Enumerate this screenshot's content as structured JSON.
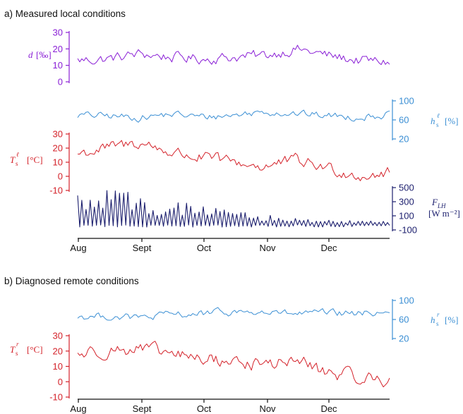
{
  "panels": {
    "a_title": "a) Measured local conditions",
    "b_title": "b) Diagnosed remote conditions"
  },
  "months": [
    "Aug",
    "Sept",
    "Oct",
    "Nov",
    "Dec"
  ],
  "colors": {
    "d": "#8a1fd6",
    "hs": "#3b8fd4",
    "Ts": "#d4222a",
    "FLH": "#1c1f6e",
    "axis": "#111111"
  },
  "chart_data": [
    {
      "type": "line",
      "panel": "a",
      "series_id": "d_local",
      "ylabel": "d [‰]",
      "ylim": [
        0,
        30
      ],
      "yticks": [
        "30",
        "20",
        "10",
        "0"
      ],
      "y_tick_values": [
        30,
        20,
        10,
        0
      ],
      "x": [
        "Aug 1",
        "Aug 15",
        "Sep 1",
        "Sep 15",
        "Oct 1",
        "Oct 15",
        "Nov 1",
        "Nov 15",
        "Dec 1",
        "Dec 15",
        "Dec 31"
      ],
      "values": [
        13,
        14,
        17,
        15,
        14,
        15,
        16,
        20,
        16,
        13,
        12
      ]
    },
    {
      "type": "line",
      "panel": "a",
      "series_id": "hs_local",
      "ylabel": "hₛˡ [%]",
      "ylim": [
        10,
        100
      ],
      "yticks": [
        "100",
        "60",
        "20"
      ],
      "y_tick_values": [
        100,
        60,
        20
      ],
      "x": [
        "Aug 1",
        "Aug 15",
        "Sep 1",
        "Sep 15",
        "Oct 1",
        "Oct 15",
        "Nov 1",
        "Nov 15",
        "Dec 1",
        "Dec 15",
        "Dec 31"
      ],
      "values": [
        70,
        68,
        65,
        72,
        66,
        70,
        78,
        73,
        69,
        66,
        72
      ]
    },
    {
      "type": "line",
      "panel": "a",
      "series_id": "Ts_local",
      "ylabel": "Tₛˡ [°C]",
      "ylim": [
        -10,
        30
      ],
      "yticks": [
        "30",
        "20",
        "10",
        "0",
        "-10"
      ],
      "y_tick_values": [
        30,
        20,
        10,
        0,
        -10
      ],
      "x": [
        "Aug 1",
        "Aug 15",
        "Sep 1",
        "Sep 15",
        "Oct 1",
        "Oct 15",
        "Nov 1",
        "Nov 15",
        "Dec 1",
        "Dec 15",
        "Dec 31"
      ],
      "values": [
        16,
        20,
        24,
        17,
        13,
        10,
        7,
        11,
        6,
        1,
        2
      ]
    },
    {
      "type": "line",
      "panel": "a",
      "series_id": "FLH",
      "ylabel": "F_LH",
      "ylabel2": "[W m⁻²]",
      "ylim": [
        -100,
        500
      ],
      "yticks": [
        "500",
        "300",
        "100",
        "-100"
      ],
      "y_tick_values": [
        500,
        300,
        100,
        -100
      ],
      "x": [
        "Aug 1",
        "Aug 15",
        "Sep 1",
        "Sep 15",
        "Oct 1",
        "Oct 15",
        "Nov 1",
        "Nov 15",
        "Dec 1",
        "Dec 15",
        "Dec 31"
      ],
      "values": [
        180,
        200,
        190,
        130,
        100,
        60,
        40,
        20,
        10,
        5,
        5
      ],
      "spread": [
        320,
        330,
        300,
        240,
        180,
        130,
        100,
        70,
        40,
        30,
        30
      ]
    },
    {
      "type": "line",
      "panel": "b",
      "series_id": "hs_remote",
      "ylabel": "hₛʳ [%]",
      "ylim": [
        10,
        100
      ],
      "yticks": [
        "100",
        "60",
        "20"
      ],
      "y_tick_values": [
        100,
        60,
        20
      ],
      "x": [
        "Aug 1",
        "Aug 15",
        "Sep 1",
        "Sep 15",
        "Oct 1",
        "Oct 15",
        "Nov 1",
        "Nov 15",
        "Dec 1",
        "Dec 15",
        "Dec 31"
      ],
      "values": [
        66,
        67,
        63,
        70,
        72,
        76,
        74,
        72,
        73,
        72,
        78
      ]
    },
    {
      "type": "line",
      "panel": "b",
      "series_id": "Ts_remote",
      "ylabel": "Tₛʳ [°C]",
      "ylim": [
        -10,
        30
      ],
      "yticks": [
        "30",
        "20",
        "10",
        "0",
        "-10"
      ],
      "y_tick_values": [
        30,
        20,
        10,
        0,
        -10
      ],
      "x": [
        "Aug 1",
        "Aug 15",
        "Sep 1",
        "Sep 15",
        "Oct 1",
        "Oct 15",
        "Nov 1",
        "Nov 15",
        "Dec 1",
        "Dec 15",
        "Dec 31"
      ],
      "values": [
        18,
        21,
        21,
        18,
        15,
        13,
        11,
        14,
        6,
        3,
        1
      ]
    }
  ]
}
